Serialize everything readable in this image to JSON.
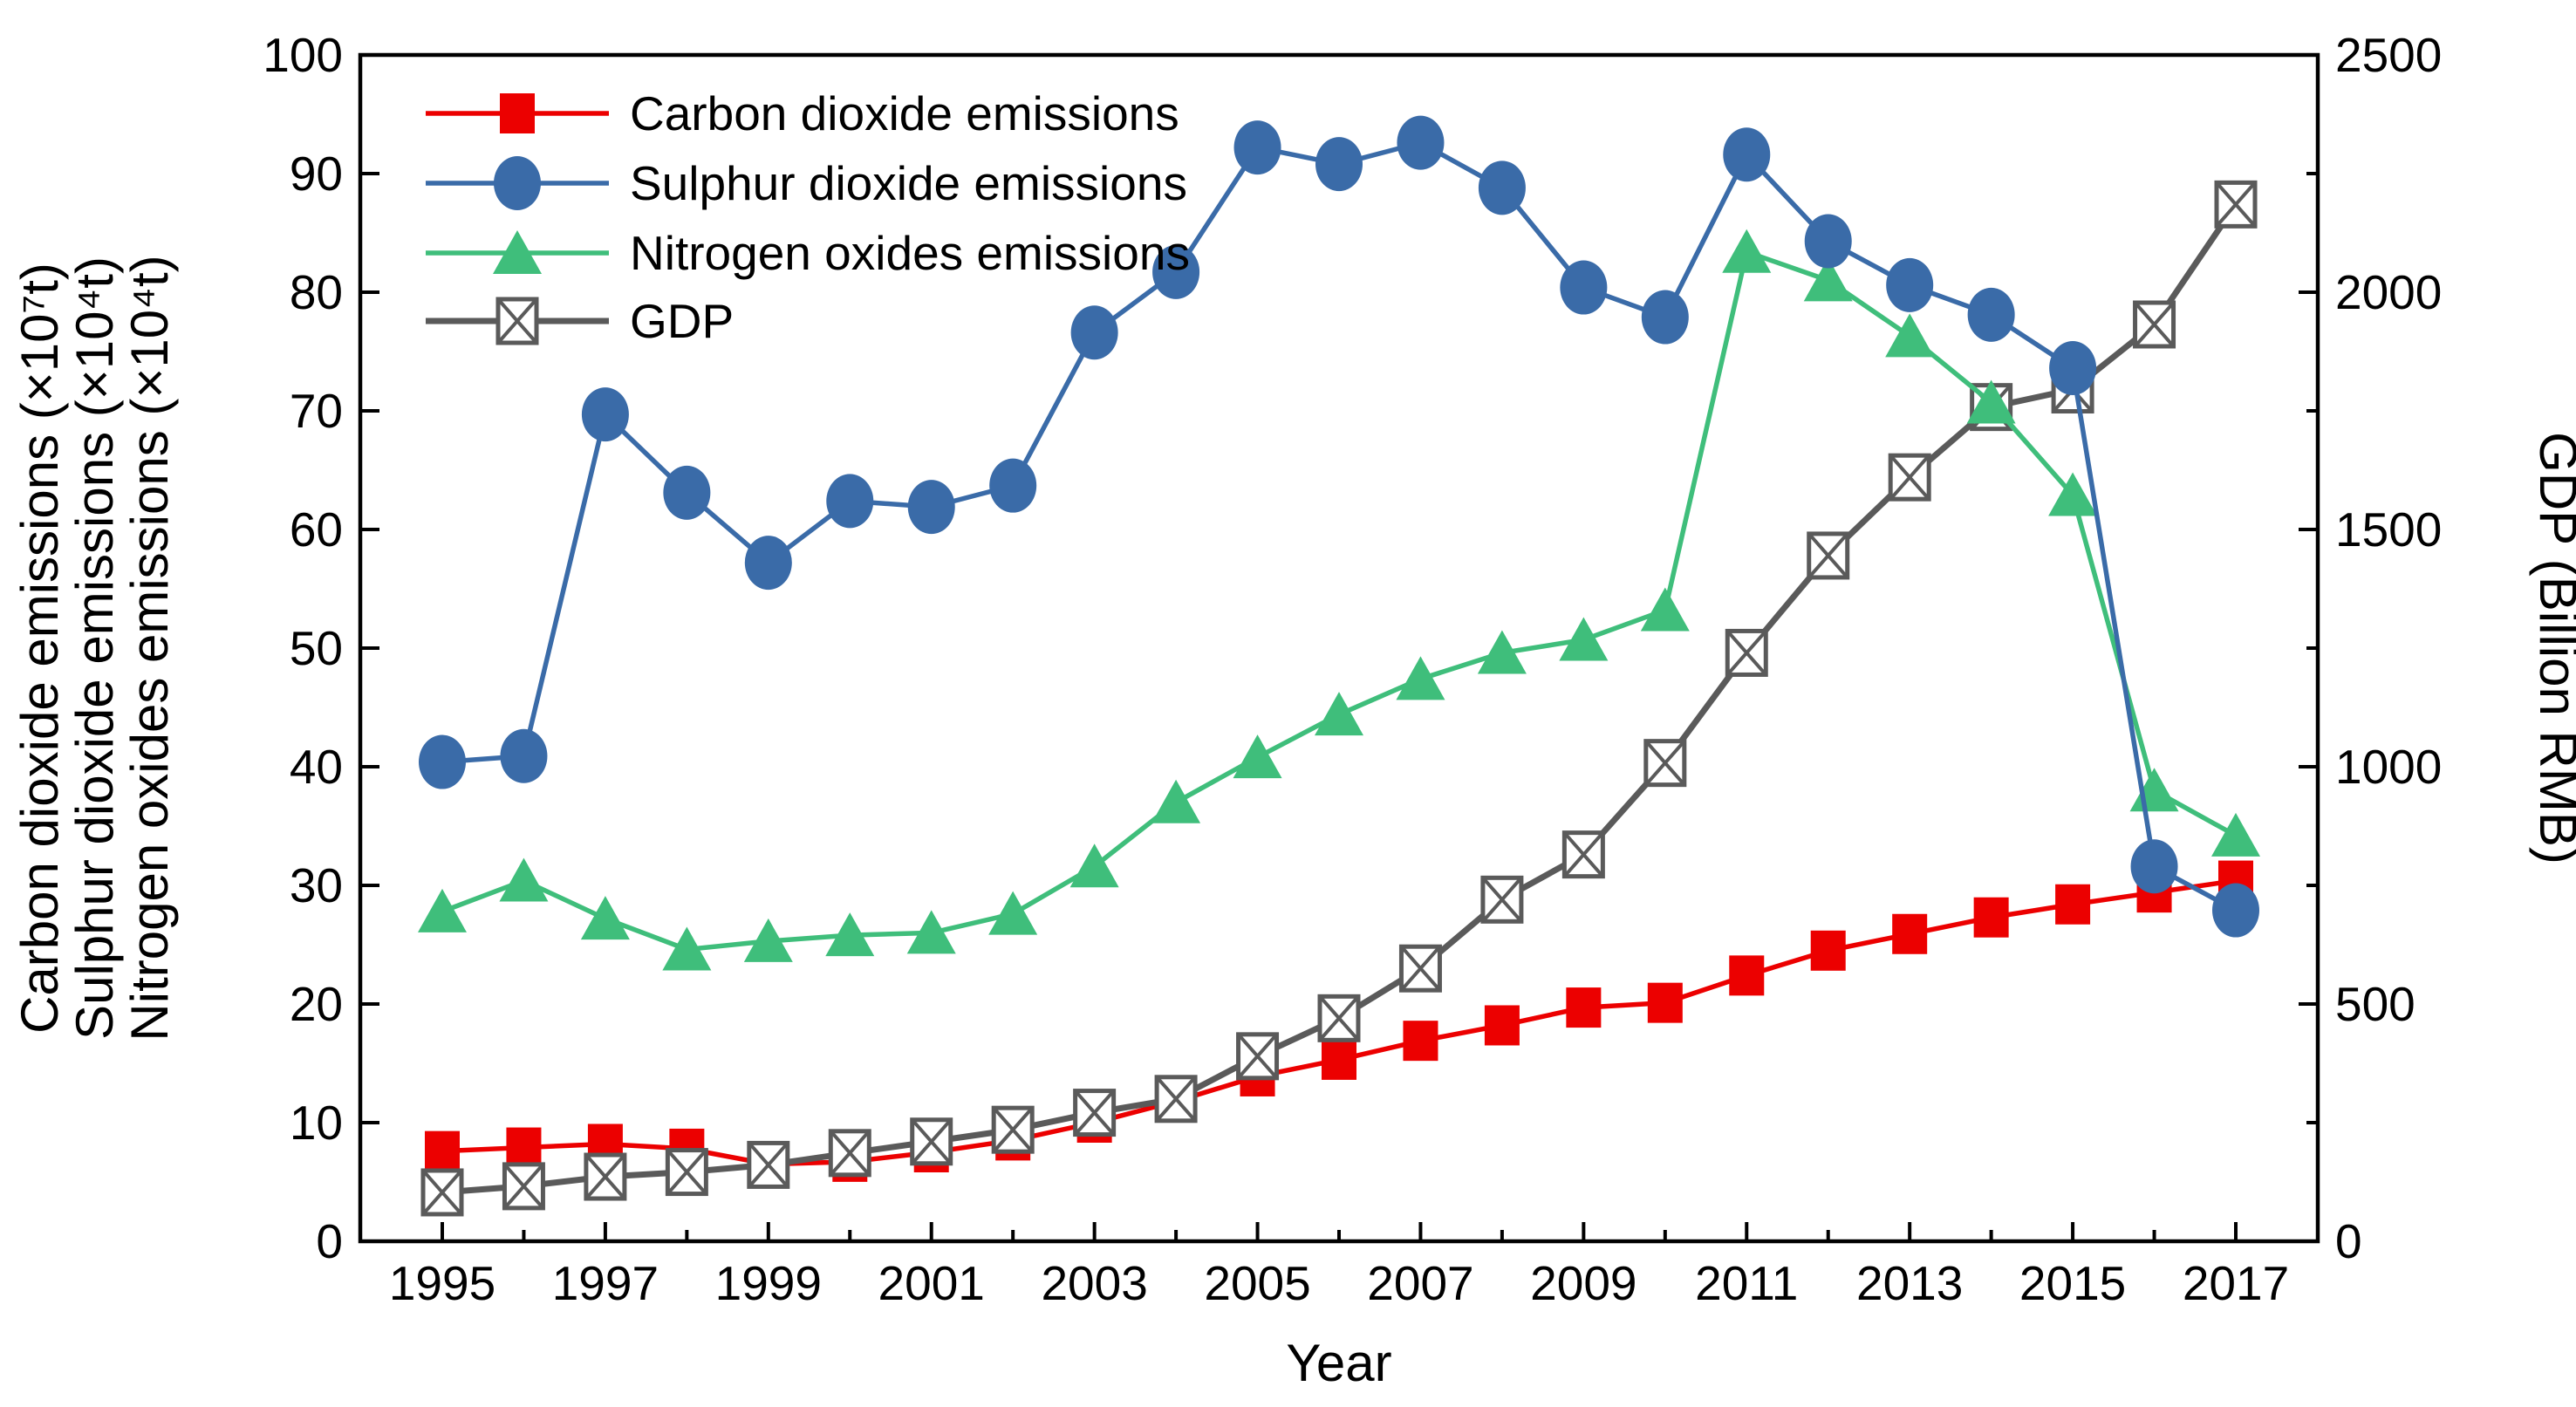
{
  "figure": {
    "background": "#ffffff",
    "frame_color": "#000000"
  },
  "chart_data": {
    "type": "line",
    "x": [
      1995,
      1996,
      1997,
      1998,
      1999,
      2000,
      2001,
      2002,
      2003,
      2004,
      2005,
      2006,
      2007,
      2008,
      2009,
      2010,
      2011,
      2012,
      2013,
      2014,
      2015,
      2016,
      2017
    ],
    "x_tick_labels": [
      "1995",
      "1997",
      "1999",
      "2001",
      "2003",
      "2005",
      "2007",
      "2009",
      "2011",
      "2013",
      "2015",
      "2017"
    ],
    "xlabel": "Year",
    "left_axis": {
      "label_lines": [
        "Carbon dioxide emissions (×10⁷t)",
        "Sulphur dioxide emissions (×10⁴t)",
        "Nitrogen oxides emissions (×10⁴t)"
      ],
      "min": 0,
      "max": 100,
      "major_step": 10,
      "tick_values": [
        0,
        10,
        20,
        30,
        40,
        50,
        60,
        70,
        80,
        90,
        100
      ]
    },
    "right_axis": {
      "label": "GDP (Billion RMB)",
      "min": 0,
      "max": 2500,
      "major_step": 500,
      "minor_step": 250,
      "tick_values": [
        0,
        500,
        1000,
        1500,
        2000,
        2500
      ]
    },
    "grid": "off",
    "legend_position": "top-left-inside",
    "series": [
      {
        "name": "Carbon dioxide emissions",
        "axis": "left",
        "color": "#ec0000",
        "marker": "square",
        "values": [
          7.6,
          7.9,
          8.2,
          7.8,
          6.5,
          6.7,
          7.5,
          8.5,
          10.0,
          11.8,
          13.9,
          15.3,
          16.9,
          18.2,
          19.7,
          20.1,
          22.4,
          24.5,
          25.9,
          27.3,
          28.4,
          29.4,
          30.4
        ]
      },
      {
        "name": "Sulphur dioxide emissions",
        "axis": "left",
        "color": "#3a6ba8",
        "marker": "circle",
        "values": [
          40.4,
          40.9,
          69.7,
          63.1,
          57.2,
          62.4,
          61.9,
          63.7,
          76.6,
          81.7,
          92.2,
          90.8,
          92.6,
          88.8,
          80.4,
          77.9,
          91.6,
          84.3,
          80.6,
          78.1,
          73.6,
          31.6,
          27.9
        ]
      },
      {
        "name": "Nitrogen oxides emissions",
        "axis": "left",
        "color": "#3fbe7b",
        "marker": "triangle",
        "values": [
          27.8,
          30.4,
          27.2,
          24.6,
          25.3,
          25.8,
          26.0,
          27.6,
          31.6,
          37.0,
          40.8,
          44.4,
          47.4,
          49.6,
          50.7,
          53.2,
          83.4,
          81.0,
          76.3,
          70.7,
          62.9,
          38.0,
          34.2
        ]
      },
      {
        "name": "GDP",
        "axis": "right",
        "color": "#5a5a5a",
        "marker": "square-x",
        "values": [
          103,
          116,
          136,
          146,
          161,
          186,
          210,
          235,
          271,
          300,
          390,
          470,
          575,
          720,
          815,
          1008,
          1240,
          1445,
          1610,
          1758,
          1795,
          1932,
          2185
        ]
      }
    ]
  }
}
